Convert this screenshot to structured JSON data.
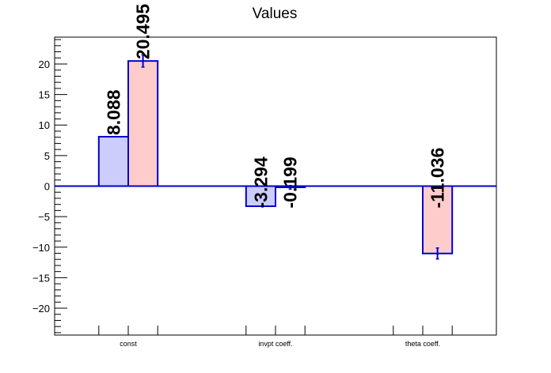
{
  "chart_data": {
    "type": "bar",
    "title": "Values",
    "categories": [
      "const",
      "invpt coeff.",
      "theta coeff."
    ],
    "series": [
      {
        "values": [
          8.088,
          -3.294,
          null
        ],
        "labels": [
          "8.088",
          "-3.294",
          ""
        ],
        "errors": [
          0,
          0,
          0
        ],
        "fill": "#ccccff",
        "stroke": "#0000cc"
      },
      {
        "values": [
          20.495,
          -0.199,
          -11.036
        ],
        "labels": [
          "20.495",
          "-0.199",
          "-11.036"
        ],
        "errors": [
          1.0,
          0.3,
          0.9
        ],
        "fill": "#ffcccc",
        "stroke": "#0000cc"
      }
    ],
    "ylim": [
      -24.4,
      24.4
    ],
    "yticks": [
      -20,
      -15,
      -10,
      -5,
      0,
      5,
      10,
      15,
      20
    ],
    "ytick_labels": [
      "−20",
      "−15",
      "−10",
      "−5",
      "0",
      "5",
      "10",
      "15",
      "20"
    ],
    "grid": false,
    "xlabel": "",
    "ylabel": ""
  }
}
